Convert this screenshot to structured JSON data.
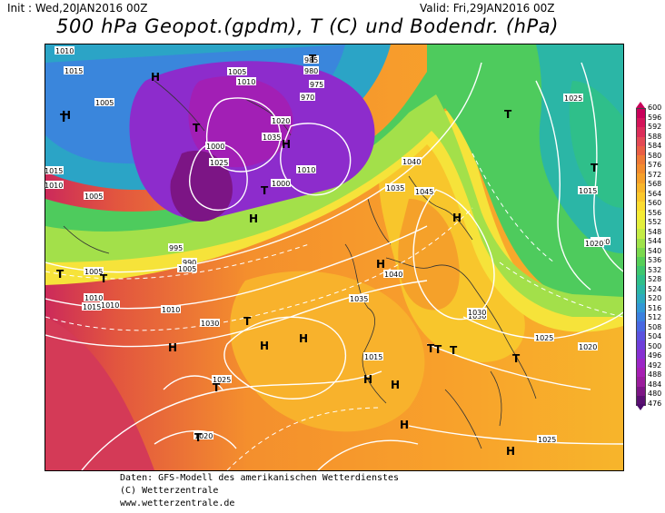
{
  "header": {
    "init": "Init : Wed,20JAN2016 00Z",
    "valid": "Valid: Fri,29JAN2016 00Z",
    "title": "500 hPa Geopot.(gpdm), T (C) und Bodendr. (hPa)"
  },
  "footer": {
    "line1": "Daten: GFS-Modell des amerikanischen Wetterdienstes",
    "line2": "(C) Wetterzentrale",
    "line3": "www.wetterzentrale.de"
  },
  "colorbar": {
    "labels": [
      "600",
      "596",
      "592",
      "588",
      "584",
      "580",
      "576",
      "572",
      "568",
      "564",
      "560",
      "556",
      "552",
      "548",
      "544",
      "540",
      "536",
      "532",
      "528",
      "524",
      "520",
      "516",
      "512",
      "508",
      "504",
      "500",
      "496",
      "492",
      "488",
      "484",
      "480",
      "476"
    ],
    "colors": [
      "#c8005a",
      "#d4155a",
      "#dc2e5a",
      "#e44a55",
      "#ea5f45",
      "#ef7a37",
      "#f38c2e",
      "#f6a02a",
      "#f8b52a",
      "#fbc82c",
      "#fcdc30",
      "#f6ec35",
      "#e2ef3d",
      "#c4ec45",
      "#9fe24a",
      "#7ad84e",
      "#56cf58",
      "#3ec76f",
      "#2fbf8a",
      "#2bb6a6",
      "#2daac0",
      "#3298d6",
      "#3b80df",
      "#4868e2",
      "#5a52df",
      "#6e3fda",
      "#8630d2",
      "#9b26c6",
      "#a61fb3",
      "#9a1d9c",
      "#7c1585",
      "#5a0f72"
    ]
  },
  "map": {
    "label_color": "#000000",
    "line_color": "#ffffff",
    "pressure_labels": [
      "1010",
      "1015",
      "1015",
      "1010",
      "1005",
      "985",
      "980",
      "975",
      "970",
      "1005",
      "1010",
      "1000",
      "1025",
      "1010",
      "1020",
      "1035",
      "1000",
      "1005",
      "1010",
      "1025",
      "1030",
      "1040",
      "1035",
      "1045",
      "1040",
      "1035",
      "1030",
      "1005",
      "1015",
      "1010",
      "1015",
      "1020",
      "1025",
      "1030",
      "1025",
      "1020",
      "1025",
      "1020",
      "1015",
      "995",
      "990",
      "1020",
      "1005",
      "1010"
    ],
    "pressure_centers": [
      "H",
      "H",
      "T",
      "T",
      "T",
      "H",
      "T",
      "H",
      "H",
      "H",
      "T",
      "T",
      "T",
      "H",
      "H",
      "T",
      "H",
      "H",
      "T",
      "T",
      "T",
      "H",
      "T",
      "T",
      "T",
      "H",
      "H",
      "T"
    ]
  }
}
